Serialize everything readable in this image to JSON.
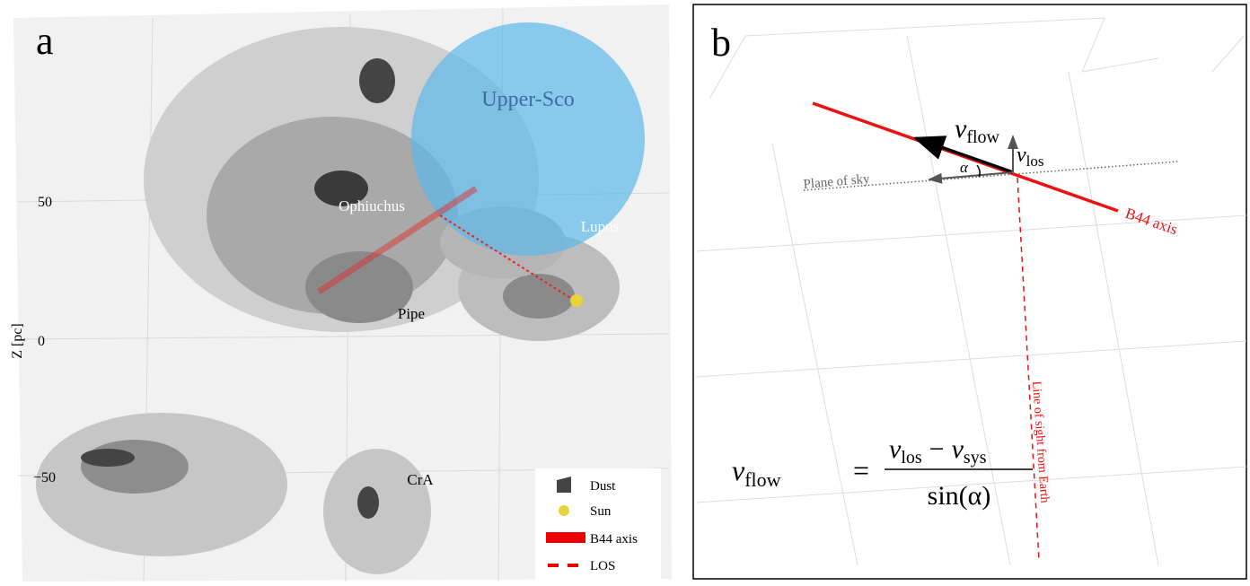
{
  "panel_a": {
    "label": "a",
    "regions": {
      "upper_sco": "Upper-Sco",
      "ophiuchus": "Ophiuchus",
      "lupus": "Lupus",
      "pipe": "Pipe",
      "cra": "CrA"
    },
    "axis_label": "Z [pc]",
    "ticks": [
      "50",
      "0",
      "−50"
    ],
    "legend": [
      "Dust",
      "Sun",
      "B44 axis",
      "LOS"
    ]
  },
  "panel_b": {
    "label": "b",
    "v": "v",
    "flow": "flow",
    "los": "los",
    "sys": "sys",
    "alpha": "α",
    "plane_of_sky": "Plane of sky",
    "b44_axis": "B44 axis",
    "line_of_sight": "Line of sight from Earth",
    "equals": "=",
    "minus": "−",
    "denominator": "sin(α)"
  }
}
